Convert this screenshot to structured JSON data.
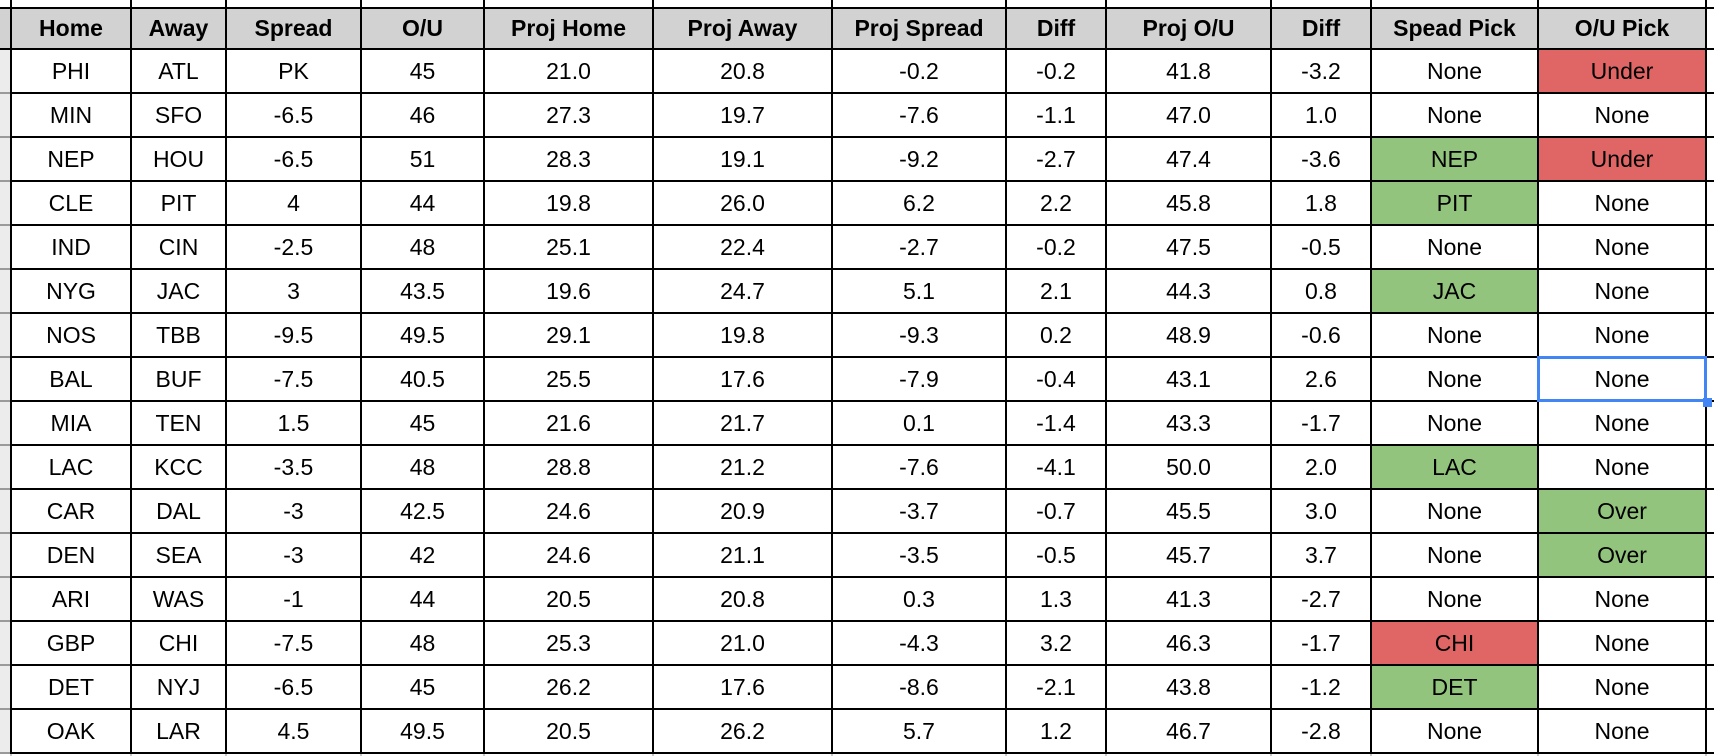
{
  "table": {
    "headers": [
      {
        "key": "home",
        "label": "Home"
      },
      {
        "key": "away",
        "label": "Away"
      },
      {
        "key": "spread",
        "label": "Spread"
      },
      {
        "key": "ou",
        "label": "O/U"
      },
      {
        "key": "proj_home",
        "label": "Proj Home"
      },
      {
        "key": "proj_away",
        "label": "Proj Away"
      },
      {
        "key": "proj_spread",
        "label": "Proj Spread"
      },
      {
        "key": "diff1",
        "label": "Diff"
      },
      {
        "key": "proj_ou",
        "label": "Proj O/U"
      },
      {
        "key": "diff2",
        "label": "Diff"
      },
      {
        "key": "spread_pick",
        "label": "Spead Pick"
      },
      {
        "key": "ou_pick",
        "label": "O/U Pick"
      }
    ],
    "rows": [
      {
        "home": "PHI",
        "away": "ATL",
        "spread": "PK",
        "ou": "45",
        "proj_home": "21.0",
        "proj_away": "20.8",
        "proj_spread": "-0.2",
        "diff1": "-0.2",
        "proj_ou": "41.8",
        "diff2": "-3.2",
        "spread_pick": "None",
        "spread_pick_color": null,
        "ou_pick": "Under",
        "ou_pick_color": "red"
      },
      {
        "home": "MIN",
        "away": "SFO",
        "spread": "-6.5",
        "ou": "46",
        "proj_home": "27.3",
        "proj_away": "19.7",
        "proj_spread": "-7.6",
        "diff1": "-1.1",
        "proj_ou": "47.0",
        "diff2": "1.0",
        "spread_pick": "None",
        "spread_pick_color": null,
        "ou_pick": "None",
        "ou_pick_color": null
      },
      {
        "home": "NEP",
        "away": "HOU",
        "spread": "-6.5",
        "ou": "51",
        "proj_home": "28.3",
        "proj_away": "19.1",
        "proj_spread": "-9.2",
        "diff1": "-2.7",
        "proj_ou": "47.4",
        "diff2": "-3.6",
        "spread_pick": "NEP",
        "spread_pick_color": "green",
        "ou_pick": "Under",
        "ou_pick_color": "red"
      },
      {
        "home": "CLE",
        "away": "PIT",
        "spread": "4",
        "ou": "44",
        "proj_home": "19.8",
        "proj_away": "26.0",
        "proj_spread": "6.2",
        "diff1": "2.2",
        "proj_ou": "45.8",
        "diff2": "1.8",
        "spread_pick": "PIT",
        "spread_pick_color": "green",
        "ou_pick": "None",
        "ou_pick_color": null
      },
      {
        "home": "IND",
        "away": "CIN",
        "spread": "-2.5",
        "ou": "48",
        "proj_home": "25.1",
        "proj_away": "22.4",
        "proj_spread": "-2.7",
        "diff1": "-0.2",
        "proj_ou": "47.5",
        "diff2": "-0.5",
        "spread_pick": "None",
        "spread_pick_color": null,
        "ou_pick": "None",
        "ou_pick_color": null
      },
      {
        "home": "NYG",
        "away": "JAC",
        "spread": "3",
        "ou": "43.5",
        "proj_home": "19.6",
        "proj_away": "24.7",
        "proj_spread": "5.1",
        "diff1": "2.1",
        "proj_ou": "44.3",
        "diff2": "0.8",
        "spread_pick": "JAC",
        "spread_pick_color": "green",
        "ou_pick": "None",
        "ou_pick_color": null
      },
      {
        "home": "NOS",
        "away": "TBB",
        "spread": "-9.5",
        "ou": "49.5",
        "proj_home": "29.1",
        "proj_away": "19.8",
        "proj_spread": "-9.3",
        "diff1": "0.2",
        "proj_ou": "48.9",
        "diff2": "-0.6",
        "spread_pick": "None",
        "spread_pick_color": null,
        "ou_pick": "None",
        "ou_pick_color": null
      },
      {
        "home": "BAL",
        "away": "BUF",
        "spread": "-7.5",
        "ou": "40.5",
        "proj_home": "25.5",
        "proj_away": "17.6",
        "proj_spread": "-7.9",
        "diff1": "-0.4",
        "proj_ou": "43.1",
        "diff2": "2.6",
        "spread_pick": "None",
        "spread_pick_color": null,
        "ou_pick": "None",
        "ou_pick_color": null
      },
      {
        "home": "MIA",
        "away": "TEN",
        "spread": "1.5",
        "ou": "45",
        "proj_home": "21.6",
        "proj_away": "21.7",
        "proj_spread": "0.1",
        "diff1": "-1.4",
        "proj_ou": "43.3",
        "diff2": "-1.7",
        "spread_pick": "None",
        "spread_pick_color": null,
        "ou_pick": "None",
        "ou_pick_color": null
      },
      {
        "home": "LAC",
        "away": "KCC",
        "spread": "-3.5",
        "ou": "48",
        "proj_home": "28.8",
        "proj_away": "21.2",
        "proj_spread": "-7.6",
        "diff1": "-4.1",
        "proj_ou": "50.0",
        "diff2": "2.0",
        "spread_pick": "LAC",
        "spread_pick_color": "green",
        "ou_pick": "None",
        "ou_pick_color": null
      },
      {
        "home": "CAR",
        "away": "DAL",
        "spread": "-3",
        "ou": "42.5",
        "proj_home": "24.6",
        "proj_away": "20.9",
        "proj_spread": "-3.7",
        "diff1": "-0.7",
        "proj_ou": "45.5",
        "diff2": "3.0",
        "spread_pick": "None",
        "spread_pick_color": null,
        "ou_pick": "Over",
        "ou_pick_color": "green"
      },
      {
        "home": "DEN",
        "away": "SEA",
        "spread": "-3",
        "ou": "42",
        "proj_home": "24.6",
        "proj_away": "21.1",
        "proj_spread": "-3.5",
        "diff1": "-0.5",
        "proj_ou": "45.7",
        "diff2": "3.7",
        "spread_pick": "None",
        "spread_pick_color": null,
        "ou_pick": "Over",
        "ou_pick_color": "green"
      },
      {
        "home": "ARI",
        "away": "WAS",
        "spread": "-1",
        "ou": "44",
        "proj_home": "20.5",
        "proj_away": "20.8",
        "proj_spread": "0.3",
        "diff1": "1.3",
        "proj_ou": "41.3",
        "diff2": "-2.7",
        "spread_pick": "None",
        "spread_pick_color": null,
        "ou_pick": "None",
        "ou_pick_color": null
      },
      {
        "home": "GBP",
        "away": "CHI",
        "spread": "-7.5",
        "ou": "48",
        "proj_home": "25.3",
        "proj_away": "21.0",
        "proj_spread": "-4.3",
        "diff1": "3.2",
        "proj_ou": "46.3",
        "diff2": "-1.7",
        "spread_pick": "CHI",
        "spread_pick_color": "red",
        "ou_pick": "None",
        "ou_pick_color": null
      },
      {
        "home": "DET",
        "away": "NYJ",
        "spread": "-6.5",
        "ou": "45",
        "proj_home": "26.2",
        "proj_away": "17.6",
        "proj_spread": "-8.6",
        "diff1": "-2.1",
        "proj_ou": "43.8",
        "diff2": "-1.2",
        "spread_pick": "DET",
        "spread_pick_color": "green",
        "ou_pick": "None",
        "ou_pick_color": null
      },
      {
        "home": "OAK",
        "away": "LAR",
        "spread": "4.5",
        "ou": "49.5",
        "proj_home": "20.5",
        "proj_away": "26.2",
        "proj_spread": "5.7",
        "diff1": "1.2",
        "proj_ou": "46.7",
        "diff2": "-2.8",
        "spread_pick": "None",
        "spread_pick_color": null,
        "ou_pick": "None",
        "ou_pick_color": null
      }
    ]
  },
  "selection": {
    "row": 7,
    "column": "ou_pick"
  },
  "colors": {
    "header_bg": "#d2d2d2",
    "pick_green": "#93c47d",
    "pick_red": "#e06666",
    "selection_blue": "#4285f4",
    "grid_black": "#000000",
    "faint_gridline": "#c9c9c9"
  }
}
